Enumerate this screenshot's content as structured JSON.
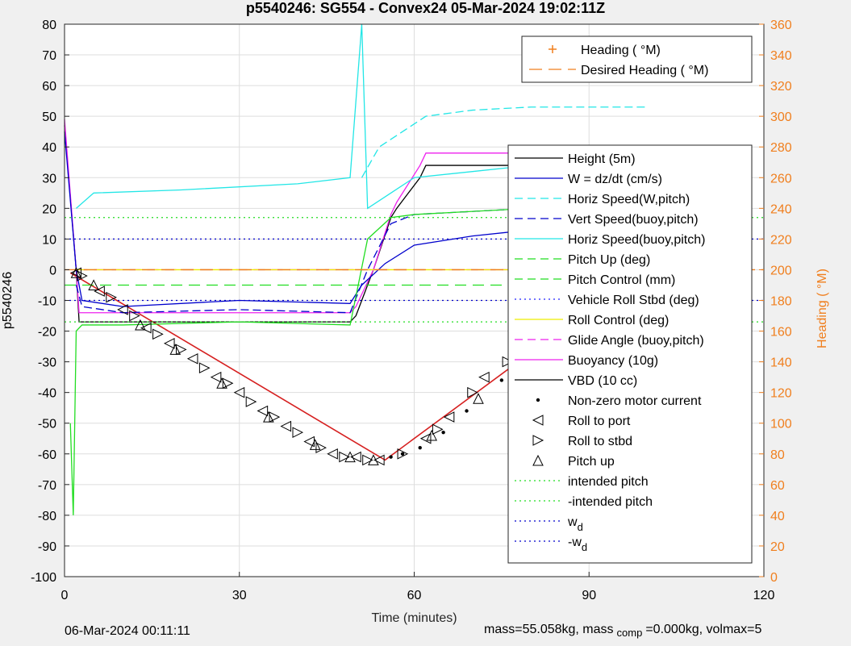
{
  "chart_data": {
    "type": "line",
    "title": "p5540246: SG554 - Convex24 05-Mar-2024 19:02:11Z",
    "xlabel": "Time (minutes)",
    "ylabel": "p5540246",
    "ylabel_right": "Heading (  °M)",
    "xlim": [
      0,
      120
    ],
    "ylim": [
      -100,
      80
    ],
    "ylim_right": [
      0,
      360
    ],
    "x_ticks": [
      0,
      30,
      60,
      90,
      120
    ],
    "y_ticks": [
      80,
      70,
      60,
      50,
      40,
      30,
      20,
      10,
      0,
      -10,
      -20,
      -30,
      -40,
      -50,
      -60,
      -70,
      -80,
      -90,
      -100
    ],
    "y_ticks_right": [
      360,
      340,
      320,
      300,
      280,
      260,
      240,
      220,
      200,
      180,
      160,
      140,
      120,
      100,
      80,
      60,
      40,
      20,
      0
    ],
    "grid": true,
    "legend_top": {
      "placement": "top-right",
      "entries": [
        {
          "label": "Heading (  °M)",
          "color": "#f07f1e",
          "style": "plus"
        },
        {
          "label": "Desired Heading (   °M)",
          "color": "#f07f1e",
          "style": "dash"
        }
      ]
    },
    "legend_main": {
      "placement": "right",
      "entries": [
        {
          "label": "Height (5m)",
          "color": "#000000",
          "style": "solid"
        },
        {
          "label": "W = dz/dt (cm/s)",
          "color": "#0000cc",
          "style": "solid"
        },
        {
          "label": "Horiz Speed(W,pitch)",
          "color": "#22e6e6",
          "style": "dash"
        },
        {
          "label": "Vert Speed(buoy,pitch)",
          "color": "#0000cc",
          "style": "dash"
        },
        {
          "label": "Horiz Speed(buoy,pitch)",
          "color": "#22e6e6",
          "style": "solid"
        },
        {
          "label": "Pitch Up (deg)",
          "color": "#22dd22",
          "style": "dash"
        },
        {
          "label": "Pitch Control (mm)",
          "color": "#22dd22",
          "style": "dash"
        },
        {
          "label": "Vehicle Roll Stbd (deg)",
          "color": "#2222ff",
          "style": "dot"
        },
        {
          "label": "Roll Control (deg)",
          "color": "#eeee00",
          "style": "solid"
        },
        {
          "label": "Glide Angle (buoy,pitch)",
          "color": "#ee22ee",
          "style": "dash"
        },
        {
          "label": "Buoyancy (10g)",
          "color": "#ee22ee",
          "style": "solid"
        },
        {
          "label": "VBD (10 cc)",
          "color": "#000000",
          "style": "solid"
        },
        {
          "label": "Non-zero motor current",
          "color": "#000000",
          "style": "dotmark"
        },
        {
          "label": "Roll to port",
          "color": "#000000",
          "style": "tri-left"
        },
        {
          "label": "Roll to stbd",
          "color": "#000000",
          "style": "tri-right"
        },
        {
          "label": "Pitch up",
          "color": "#000000",
          "style": "tri-up"
        },
        {
          "label": "intended pitch",
          "color": "#22dd22",
          "style": "dot"
        },
        {
          "label": "-intended pitch",
          "color": "#22dd22",
          "style": "dot"
        },
        {
          "label": "w",
          "sub": "d",
          "color": "#0000cc",
          "style": "dot"
        },
        {
          "label": "-w",
          "sub": "d",
          "color": "#0000cc",
          "style": "dot"
        }
      ]
    },
    "series": [
      {
        "name": "Height (5m)",
        "color": "#d62020",
        "x": [
          1,
          55,
          100
        ],
        "y": [
          -1,
          -62,
          1
        ]
      },
      {
        "name": "VBD (10 cc)",
        "color": "#000000",
        "x": [
          0,
          2,
          2.5,
          49,
          50,
          53,
          56,
          57,
          61,
          62,
          100
        ],
        "y": [
          47,
          0,
          -17,
          -17,
          -15,
          0,
          17,
          20,
          30,
          34,
          34
        ]
      },
      {
        "name": "Buoyancy (10g)",
        "color": "#ee22ee",
        "x": [
          0,
          2,
          2.5,
          49,
          50,
          53,
          56,
          57,
          61,
          62,
          100
        ],
        "y": [
          49,
          0,
          -14,
          -14,
          -12,
          0,
          18,
          22,
          34,
          38,
          38
        ]
      },
      {
        "name": "W = dz/dt (cm/s)",
        "color": "#0000cc",
        "x": [
          0,
          2,
          3,
          10,
          30,
          49,
          51,
          55,
          60,
          70,
          80,
          90,
          100
        ],
        "y": [
          45,
          0,
          -10,
          -12,
          -10,
          -11,
          -5,
          2,
          8,
          11,
          13,
          13,
          12
        ]
      },
      {
        "name": "Vert Speed(buoy,pitch)",
        "color": "#0000cc",
        "x": [
          2,
          3,
          10,
          30,
          49,
          52,
          56,
          60,
          70,
          80,
          90,
          100
        ],
        "y": [
          -5,
          -12,
          -14,
          -13,
          -14,
          0,
          15,
          18,
          19,
          20,
          20,
          20
        ]
      },
      {
        "name": "Horiz Speed(buoy,pitch)",
        "color": "#22e6e6",
        "x": [
          2,
          5,
          20,
          40,
          49,
          51,
          52,
          56,
          60,
          70,
          80,
          90,
          100
        ],
        "y": [
          20,
          25,
          26,
          28,
          30,
          80,
          20,
          25,
          30,
          32,
          34,
          34,
          34
        ]
      },
      {
        "name": "Horiz Speed(W,pitch)",
        "color": "#22e6e6",
        "x": [
          51,
          54,
          58,
          62,
          70,
          80,
          90,
          100
        ],
        "y": [
          30,
          40,
          45,
          50,
          52,
          53,
          53,
          53
        ]
      },
      {
        "name": "Pitch Up (deg)",
        "color": "#22dd22",
        "x": [
          1,
          1.5,
          2,
          3,
          10,
          30,
          49,
          52,
          56,
          60,
          70,
          80,
          90,
          100
        ],
        "y": [
          -50,
          -80,
          -20,
          -18,
          -18,
          -17,
          -18,
          10,
          17,
          18,
          19,
          20,
          20,
          20
        ]
      },
      {
        "name": "Pitch Control (mm)",
        "color": "#22dd22",
        "x": [
          0,
          100
        ],
        "y": [
          -5,
          -5
        ]
      },
      {
        "name": "Glide Angle (buoy,pitch)",
        "color": "#ee22ee",
        "x": [
          2,
          49,
          53,
          100
        ],
        "y": [
          0,
          0,
          0,
          0
        ]
      },
      {
        "name": "Roll Control (deg)",
        "color": "#eeee00",
        "x": [
          2,
          100
        ],
        "y": [
          0,
          0
        ]
      },
      {
        "name": "intended pitch",
        "color": "#22dd22",
        "x": [
          0,
          120
        ],
        "y": [
          17,
          17
        ]
      },
      {
        "name": "-intended pitch",
        "color": "#22dd22",
        "x": [
          0,
          120
        ],
        "y": [
          -17,
          -17
        ]
      },
      {
        "name": "w_d",
        "color": "#0000cc",
        "x": [
          0,
          120
        ],
        "y": [
          10,
          10
        ]
      },
      {
        "name": "-w_d",
        "color": "#0000cc",
        "x": [
          0,
          120
        ],
        "y": [
          -10,
          -10
        ]
      },
      {
        "name": "Desired Heading (   °M)",
        "color": "#f07f1e",
        "x": [
          0,
          120
        ],
        "y_right": [
          200,
          200
        ]
      }
    ],
    "markers": {
      "roll_to_port": {
        "x": [
          2,
          6,
          10,
          14,
          18,
          22,
          26,
          30,
          34,
          38,
          42,
          46,
          50,
          54,
          62,
          66,
          72,
          78,
          84,
          90,
          96
        ],
        "y": [
          -1,
          -7,
          -13,
          -19,
          -24,
          -29,
          -35,
          -40,
          -46,
          -51,
          -56,
          -60,
          -61,
          -62,
          -55,
          -48,
          -35,
          -25,
          -15,
          -6,
          -3
        ]
      },
      "roll_to_stbd": {
        "x": [
          3,
          8,
          12,
          16,
          20,
          24,
          28,
          32,
          36,
          40,
          44,
          48,
          52,
          58,
          64,
          70,
          76,
          82,
          88,
          94,
          99
        ],
        "y": [
          -2,
          -9,
          -15,
          -21,
          -26,
          -32,
          -37,
          -43,
          -48,
          -53,
          -58,
          -61,
          -62,
          -60,
          -52,
          -40,
          -30,
          -20,
          -10,
          -4,
          0
        ]
      },
      "pitch_up": {
        "x": [
          2,
          5,
          13,
          19,
          27,
          35,
          43,
          49,
          53,
          63,
          71,
          79,
          87,
          95
        ],
        "y": [
          -1,
          -5,
          -18,
          -26,
          -37,
          -48,
          -57,
          -61,
          -62,
          -54,
          -42,
          -27,
          -13,
          -5
        ]
      },
      "motor_current": {
        "x": [
          56,
          58,
          61,
          65,
          69,
          75,
          81
        ],
        "y": [
          -61,
          -60,
          -58,
          -53,
          -46,
          -36,
          -27
        ]
      }
    }
  },
  "footer": {
    "left": "06-Mar-2024 00:11:11",
    "right_a": "mass=55.058kg, mass",
    "right_sub": "comp",
    "right_b": "=0.000kg, volmax=5"
  }
}
